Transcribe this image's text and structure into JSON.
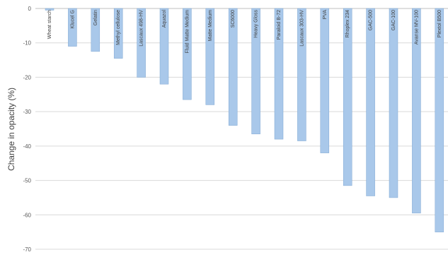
{
  "chart_data": {
    "type": "bar",
    "title": "",
    "xlabel": "",
    "ylabel": "Change in opacity (%)",
    "ylim": [
      -70,
      0
    ],
    "yticks": [
      0,
      -10,
      -20,
      -30,
      -40,
      -50,
      -60,
      -70
    ],
    "grid": true,
    "legend": "none",
    "bar_color": "#a9c8ea",
    "bar_edge_color": "#7fa7d2",
    "categories": [
      "Wheat starch",
      "Klucel G",
      "Gelatin",
      "Methyl cellulose",
      "Lascaux 498-HV",
      "Aquazol",
      "Fluid Matte Medium",
      "Matte Medium",
      "SC6000",
      "Heavy Gloss",
      "Paraloid B-72",
      "Lascaux 303-HV",
      "PVA",
      "Rhoplex 234",
      "GAC-500",
      "GAC-100",
      "Avanse MV-100",
      "Plextol B500"
    ],
    "values": [
      -0.5,
      -11,
      -12.5,
      -14.5,
      -20,
      -22,
      -26.5,
      -28,
      -34,
      -36.5,
      -38,
      -38.5,
      -42,
      -51.5,
      -54.5,
      -55,
      -59.5,
      -65
    ]
  }
}
